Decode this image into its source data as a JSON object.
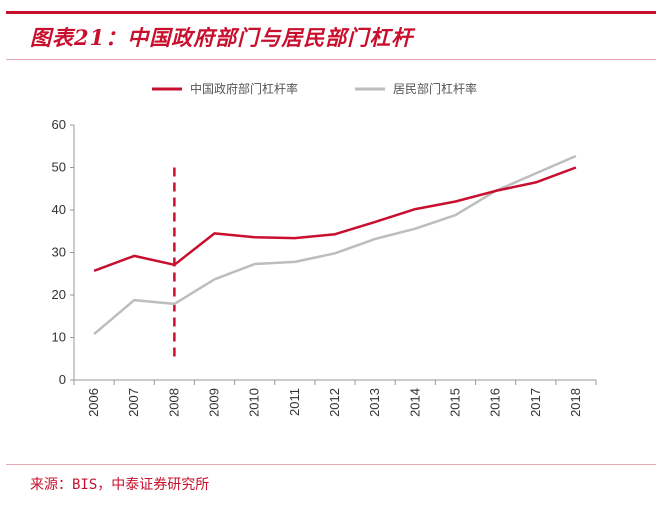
{
  "header": {
    "title": "图表21：中国政府部门与居民部门杠杆"
  },
  "footer": {
    "source": "来源：BIS，中泰证券研究所"
  },
  "colors": {
    "accent": "#c8102e",
    "series_gov": "#c8102e",
    "series_household": "#bdbdbd",
    "axis": "#999999"
  },
  "chart_data": {
    "type": "line",
    "title": "",
    "xlabel": "",
    "ylabel": "",
    "x": [
      "2006",
      "2007",
      "2008",
      "2009",
      "2010",
      "2011",
      "2012",
      "2013",
      "2014",
      "2015",
      "2016",
      "2017",
      "2018"
    ],
    "ylim": [
      0,
      60
    ],
    "yticks": [
      0,
      10,
      20,
      30,
      40,
      50,
      60
    ],
    "grid": false,
    "legend_position": "top",
    "series": [
      {
        "name": "中国政府部门杠杆率",
        "color": "#c8102e",
        "values": [
          25.7,
          29.2,
          27.1,
          34.5,
          33.6,
          33.4,
          34.3,
          37.2,
          40.2,
          42.0,
          44.5,
          46.5,
          50.0
        ]
      },
      {
        "name": "居民部门杠杆率",
        "color": "#bdbdbd",
        "values": [
          10.8,
          18.8,
          17.9,
          23.7,
          27.3,
          27.8,
          29.8,
          33.2,
          35.6,
          38.8,
          44.5,
          48.6,
          52.7
        ]
      }
    ],
    "annotations": [
      {
        "type": "vertical-dashed-line",
        "x": "2008",
        "y_from": 5,
        "y_to": 50,
        "color": "#c8102e"
      }
    ]
  }
}
